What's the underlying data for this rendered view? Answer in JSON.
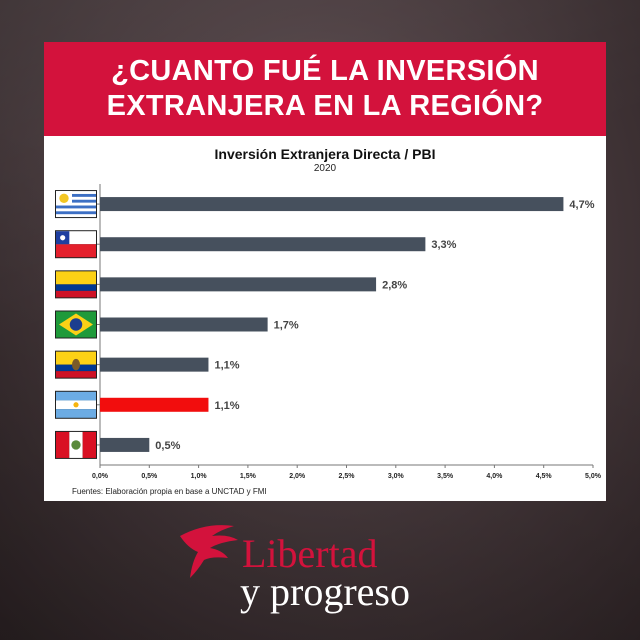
{
  "title": {
    "line1": "¿CUANTO FUÉ LA INVERSIÓN",
    "line2": "EXTRANJERA EN LA REGIÓN?"
  },
  "chart_data": {
    "type": "bar",
    "orientation": "horizontal",
    "title": "Inversión Extranjera Directa / PBI",
    "subtitle": "2020",
    "categories": [
      "Uruguay",
      "Chile",
      "Colombia",
      "Brasil",
      "Ecuador",
      "Argentina",
      "Perú"
    ],
    "values": [
      4.7,
      3.3,
      2.8,
      1.7,
      1.1,
      1.1,
      0.5
    ],
    "value_labels": [
      "4,7%",
      "3,3%",
      "2,8%",
      "1,7%",
      "1,1%",
      "1,1%",
      "0,5%"
    ],
    "bar_colors": [
      "#46505d",
      "#46505d",
      "#46505d",
      "#46505d",
      "#46505d",
      "#f20d0d",
      "#46505d"
    ],
    "xlim": [
      0,
      5
    ],
    "xticks": [
      0,
      0.5,
      1,
      1.5,
      2,
      2.5,
      3,
      3.5,
      4,
      4.5,
      5
    ],
    "xtick_labels": [
      "0,0%",
      "0,5%",
      "1,0%",
      "1,5%",
      "2,0%",
      "2,5%",
      "3,0%",
      "3,5%",
      "4,0%",
      "4,5%",
      "5,0%"
    ],
    "grid": false,
    "source": "Fuentes: Elaboración propia en base a UNCTAD y FMI"
  },
  "flags": [
    "uruguay-flag",
    "chile-flag",
    "colombia-flag",
    "brazil-flag",
    "ecuador-flag",
    "argentina-flag",
    "peru-flag"
  ],
  "brand": {
    "line1": "Libertad",
    "line2": "y progreso",
    "color": "#d3123c"
  }
}
